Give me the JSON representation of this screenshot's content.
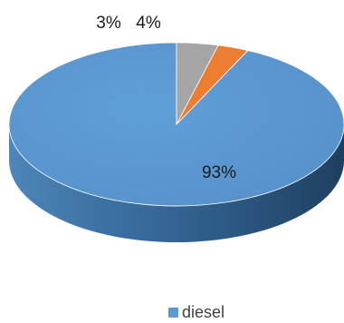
{
  "chart_data": {
    "type": "pie",
    "style": "3d",
    "slices": [
      {
        "label": "diesel",
        "value": 93,
        "display": "93%",
        "color": "#5B9BD5"
      },
      {
        "label": "",
        "value": 3,
        "display": "3%",
        "color": "#ED7D31"
      },
      {
        "label": "",
        "value": 4,
        "display": "4%",
        "color": "#A5A5A5"
      }
    ],
    "legend": {
      "position": "bottom",
      "entries": [
        "diesel"
      ]
    }
  }
}
